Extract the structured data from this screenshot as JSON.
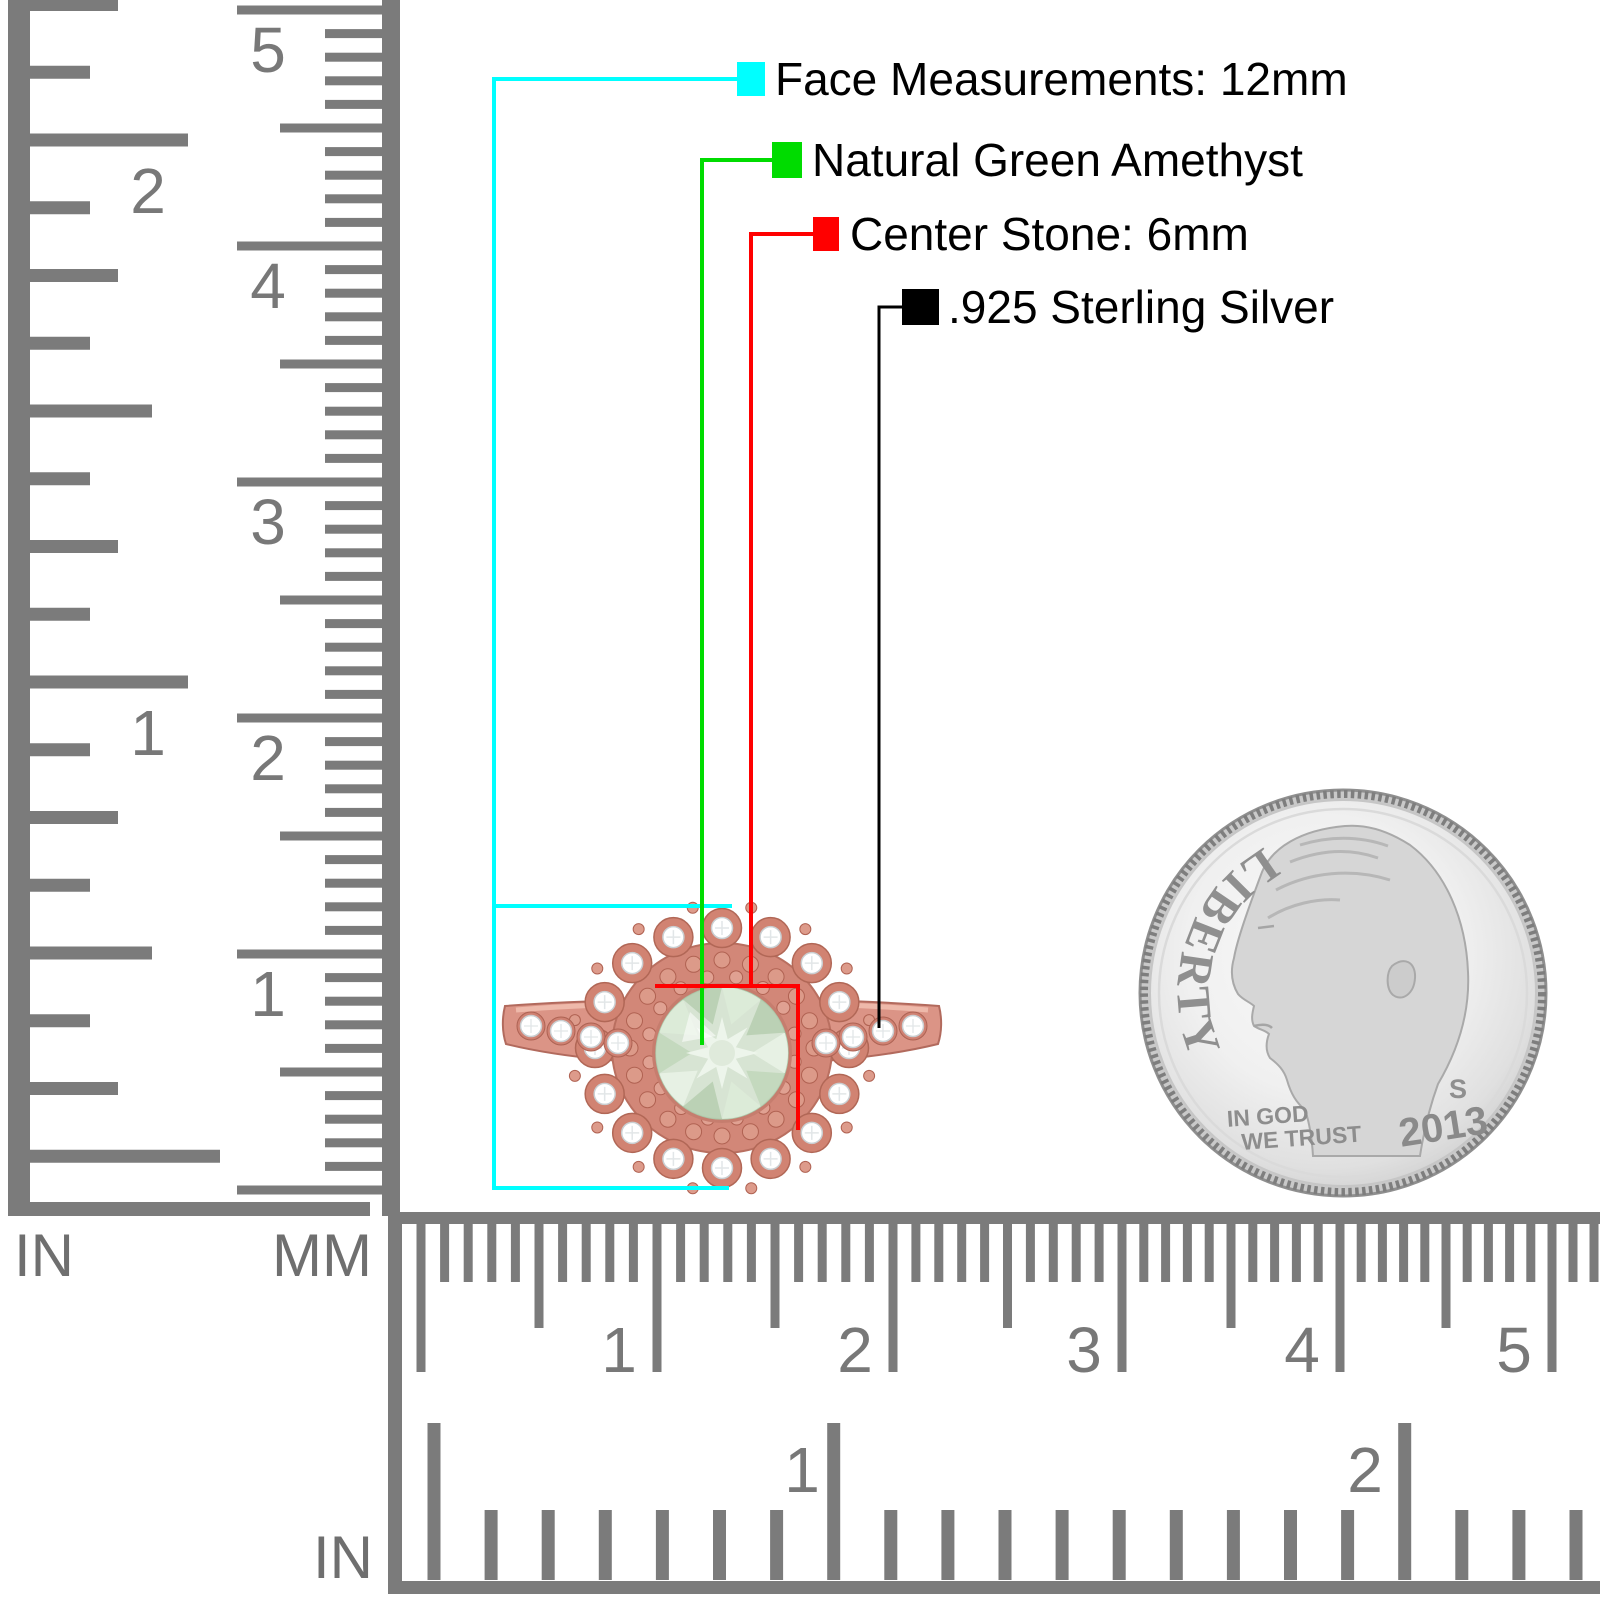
{
  "legend": {
    "items": [
      {
        "label": "Face Measurements: 12mm",
        "color": "#00ffff"
      },
      {
        "label": "Natural Green Amethyst",
        "color": "#00dc00"
      },
      {
        "label": "Center Stone: 6mm",
        "color": "#ff0000"
      },
      {
        "label": ".925 Sterling Silver",
        "color": "#000000"
      }
    ]
  },
  "rulers": {
    "vertical_inch": {
      "unit_label": "IN",
      "labels": [
        "1",
        "2"
      ]
    },
    "vertical_mm": {
      "unit_label": "MM",
      "labels": [
        "1",
        "2",
        "3",
        "4",
        "5"
      ]
    },
    "horizontal_mm": {
      "labels": [
        "1",
        "2",
        "3",
        "4",
        "5"
      ]
    },
    "horizontal_inch": {
      "unit_label": "IN",
      "labels": [
        "1",
        "2"
      ]
    }
  },
  "ring": {
    "metal_color": "#d99181",
    "stone_color": "#d7e4d3",
    "halo_stone_color": "#ffffff"
  },
  "dime": {
    "liberty": "LIBERTY",
    "motto_line1": "IN GOD",
    "motto_line2": "WE TRUST",
    "year": "2013",
    "mint_mark": "S"
  }
}
